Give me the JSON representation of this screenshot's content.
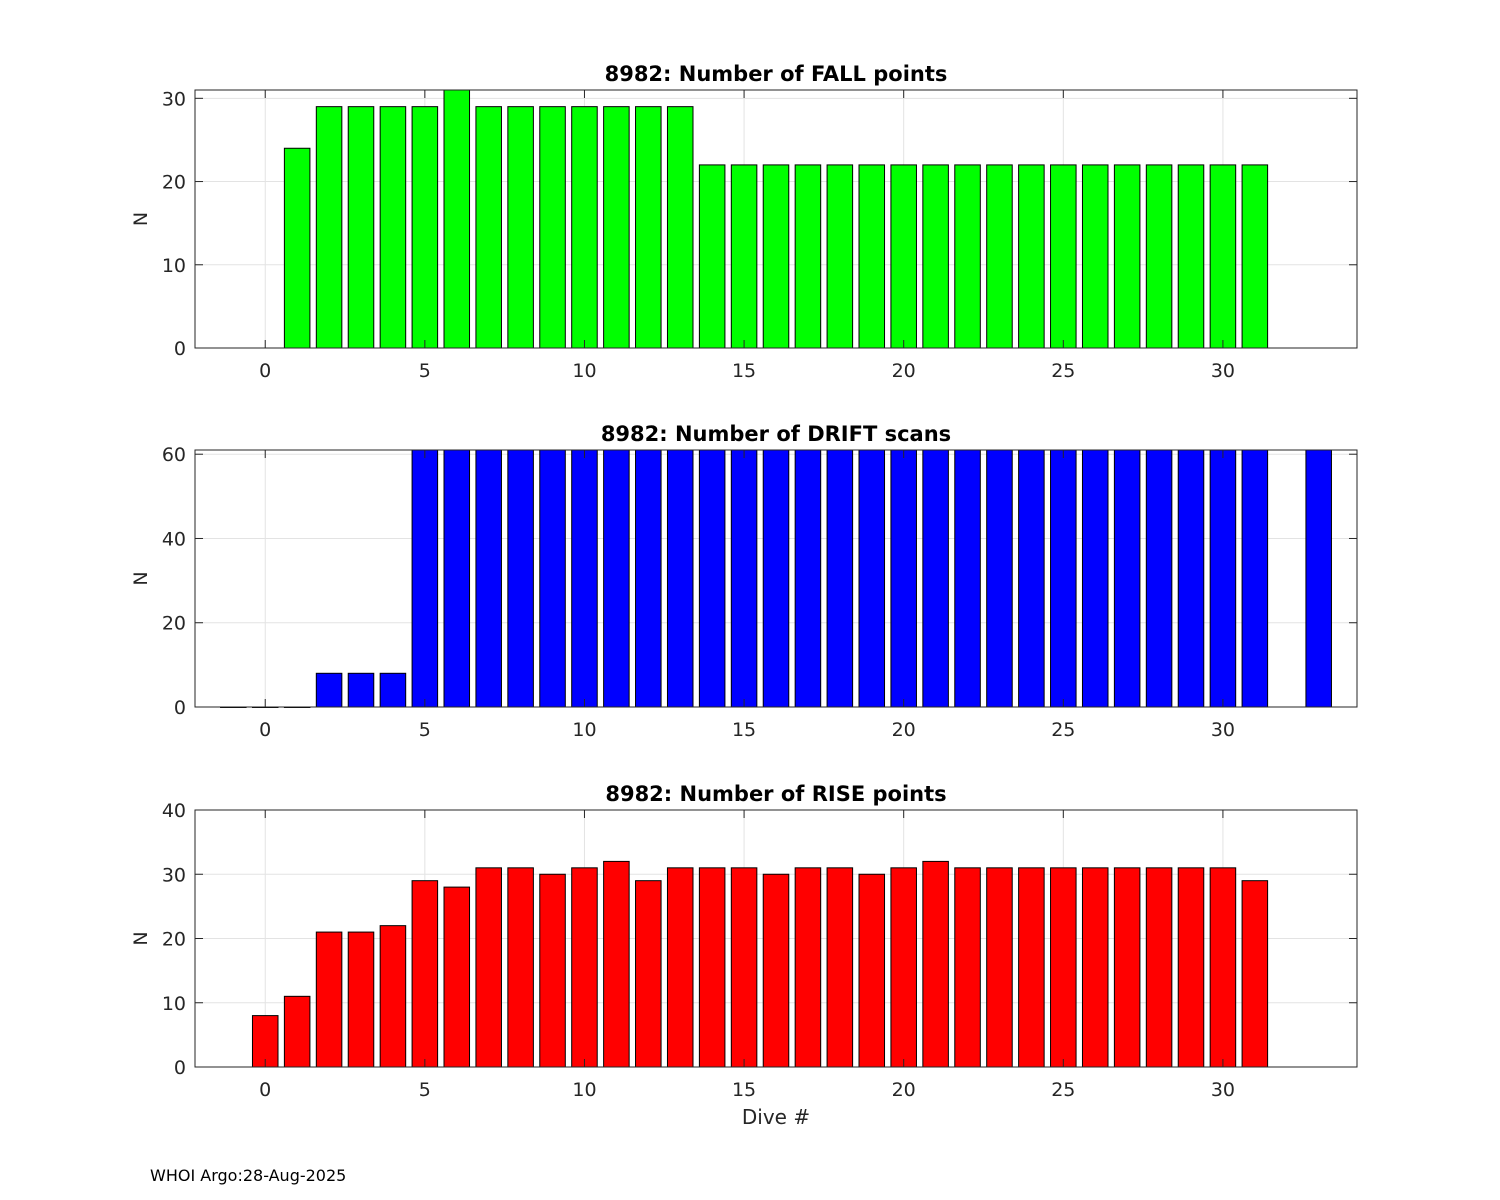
{
  "footer": {
    "text": "WHOI Argo:28-Aug-2025"
  },
  "chart_data": [
    {
      "type": "bar",
      "title": "8982: Number of FALL points",
      "xlabel": "",
      "ylabel": "N",
      "color": "#00ff00",
      "xlim": [
        -2.2,
        34.2
      ],
      "ylim": [
        0,
        31
      ],
      "xticks": [
        0,
        5,
        10,
        15,
        20,
        25,
        30
      ],
      "yticks": [
        0,
        10,
        20,
        30
      ],
      "grid": true,
      "x": [
        1,
        2,
        3,
        4,
        5,
        6,
        7,
        8,
        9,
        10,
        11,
        12,
        13,
        14,
        15,
        16,
        17,
        18,
        19,
        20,
        21,
        22,
        23,
        24,
        25,
        26,
        27,
        28,
        29,
        30,
        31
      ],
      "values": [
        24,
        29,
        29,
        29,
        29,
        31,
        29,
        29,
        29,
        29,
        29,
        29,
        29,
        22,
        22,
        22,
        22,
        22,
        22,
        22,
        22,
        22,
        22,
        22,
        22,
        22,
        22,
        22,
        22,
        22,
        22
      ]
    },
    {
      "type": "bar",
      "title": "8982: Number of DRIFT scans",
      "xlabel": "",
      "ylabel": "N",
      "color": "#0000ff",
      "xlim": [
        -2.2,
        34.2
      ],
      "ylim": [
        0,
        61
      ],
      "xticks": [
        0,
        5,
        10,
        15,
        20,
        25,
        30
      ],
      "yticks": [
        0,
        20,
        40,
        60
      ],
      "grid": true,
      "x": [
        -1,
        0,
        1,
        2,
        3,
        4,
        5,
        6,
        7,
        8,
        9,
        10,
        11,
        12,
        13,
        14,
        15,
        16,
        17,
        18,
        19,
        20,
        21,
        22,
        23,
        24,
        25,
        26,
        27,
        28,
        29,
        30,
        31,
        33
      ],
      "values": [
        0,
        0,
        0,
        8,
        8,
        8,
        61,
        61,
        61,
        61,
        61,
        61,
        61,
        61,
        61,
        61,
        61,
        61,
        61,
        61,
        61,
        61,
        61,
        61,
        61,
        61,
        61,
        61,
        61,
        61,
        61,
        61,
        61,
        61
      ]
    },
    {
      "type": "bar",
      "title": "8982: Number of RISE points",
      "xlabel": "Dive #",
      "ylabel": "N",
      "color": "#ff0000",
      "xlim": [
        -2.2,
        34.2
      ],
      "ylim": [
        0,
        40
      ],
      "xticks": [
        0,
        5,
        10,
        15,
        20,
        25,
        30
      ],
      "yticks": [
        0,
        10,
        20,
        30,
        40
      ],
      "grid": true,
      "x": [
        0,
        1,
        2,
        3,
        4,
        5,
        6,
        7,
        8,
        9,
        10,
        11,
        12,
        13,
        14,
        15,
        16,
        17,
        18,
        19,
        20,
        21,
        22,
        23,
        24,
        25,
        26,
        27,
        28,
        29,
        30,
        31
      ],
      "values": [
        8,
        11,
        21,
        21,
        22,
        29,
        28,
        31,
        31,
        30,
        31,
        32,
        29,
        31,
        31,
        31,
        30,
        31,
        31,
        30,
        31,
        32,
        31,
        31,
        31,
        31,
        31,
        31,
        31,
        31,
        31,
        29
      ]
    }
  ]
}
